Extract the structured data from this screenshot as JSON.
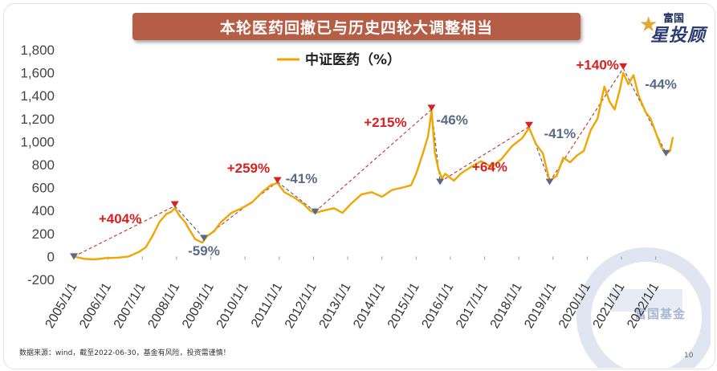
{
  "title": "本轮医药回撤已与历史四轮大调整相当",
  "logo": {
    "line1": "富国",
    "line2": "星投顾"
  },
  "watermark_text": "富国基金",
  "footer_note": "数据来源：wind，截至2022-06-30，基金有风险，投资需谨慎！",
  "page_number": "10",
  "colors": {
    "series": "#f0a500",
    "rise": "#d92020",
    "fall": "#5a6a86",
    "title_bg": "#b55e45"
  },
  "chart_data": {
    "type": "line",
    "title": "",
    "xlabel": "",
    "ylabel": "",
    "ylim": [
      -200,
      1800
    ],
    "yticks": [
      -200,
      0,
      200,
      400,
      600,
      800,
      1000,
      1200,
      1400,
      1600,
      1800
    ],
    "ytick_labels": [
      "-200",
      "0",
      "200",
      "400",
      "600",
      "800",
      "1,000",
      "1,200",
      "1,400",
      "1,600",
      "1,800"
    ],
    "x_range": [
      2005.0,
      2022.5
    ],
    "xtick_labels": [
      "2005/1/1",
      "2006/1/1",
      "2007/1/1",
      "2008/1/1",
      "2009/1/1",
      "2010/1/1",
      "2011/1/1",
      "2012/1/1",
      "2013/1/1",
      "2014/1/1",
      "2015/1/1",
      "2016/1/1",
      "2017/1/1",
      "2018/1/1",
      "2019/1/1",
      "2020/1/1",
      "2021/1/1",
      "2022/1/1"
    ],
    "legend": {
      "position": "top-left",
      "entries": [
        "中证医药（%）"
      ]
    },
    "grid": false,
    "series": [
      {
        "name": "中证医药（%）",
        "points": [
          [
            2005.0,
            0
          ],
          [
            2005.3,
            -20
          ],
          [
            2005.6,
            -25
          ],
          [
            2005.9,
            -15
          ],
          [
            2006.3,
            -10
          ],
          [
            2006.6,
            0
          ],
          [
            2006.9,
            40
          ],
          [
            2007.1,
            80
          ],
          [
            2007.3,
            180
          ],
          [
            2007.5,
            300
          ],
          [
            2007.7,
            370
          ],
          [
            2007.85,
            390
          ],
          [
            2007.95,
            420
          ],
          [
            2008.1,
            350
          ],
          [
            2008.25,
            300
          ],
          [
            2008.4,
            220
          ],
          [
            2008.55,
            150
          ],
          [
            2008.75,
            120
          ],
          [
            2008.9,
            180
          ],
          [
            2009.1,
            220
          ],
          [
            2009.3,
            300
          ],
          [
            2009.6,
            380
          ],
          [
            2009.9,
            420
          ],
          [
            2010.2,
            470
          ],
          [
            2010.5,
            560
          ],
          [
            2010.75,
            620
          ],
          [
            2010.95,
            640
          ],
          [
            2011.15,
            560
          ],
          [
            2011.4,
            520
          ],
          [
            2011.7,
            460
          ],
          [
            2011.9,
            400
          ],
          [
            2012.05,
            380
          ],
          [
            2012.3,
            400
          ],
          [
            2012.6,
            420
          ],
          [
            2012.85,
            380
          ],
          [
            2013.1,
            460
          ],
          [
            2013.4,
            540
          ],
          [
            2013.7,
            560
          ],
          [
            2014.0,
            520
          ],
          [
            2014.3,
            580
          ],
          [
            2014.6,
            600
          ],
          [
            2014.85,
            620
          ],
          [
            2015.0,
            720
          ],
          [
            2015.2,
            900
          ],
          [
            2015.35,
            1050
          ],
          [
            2015.45,
            1270
          ],
          [
            2015.55,
            900
          ],
          [
            2015.65,
            760
          ],
          [
            2015.75,
            680
          ],
          [
            2015.85,
            720
          ],
          [
            2016.1,
            660
          ],
          [
            2016.3,
            720
          ],
          [
            2016.6,
            780
          ],
          [
            2016.9,
            830
          ],
          [
            2017.2,
            780
          ],
          [
            2017.5,
            850
          ],
          [
            2017.8,
            960
          ],
          [
            2018.1,
            1030
          ],
          [
            2018.3,
            1120
          ],
          [
            2018.5,
            980
          ],
          [
            2018.7,
            900
          ],
          [
            2018.9,
            660
          ],
          [
            2019.1,
            700
          ],
          [
            2019.3,
            860
          ],
          [
            2019.5,
            820
          ],
          [
            2019.7,
            880
          ],
          [
            2019.9,
            920
          ],
          [
            2020.1,
            1100
          ],
          [
            2020.3,
            1200
          ],
          [
            2020.5,
            1480
          ],
          [
            2020.65,
            1350
          ],
          [
            2020.8,
            1280
          ],
          [
            2020.95,
            1450
          ],
          [
            2021.05,
            1600
          ],
          [
            2021.2,
            1500
          ],
          [
            2021.35,
            1580
          ],
          [
            2021.5,
            1400
          ],
          [
            2021.7,
            1260
          ],
          [
            2021.85,
            1200
          ],
          [
            2022.0,
            1080
          ],
          [
            2022.15,
            960
          ],
          [
            2022.3,
            890
          ],
          [
            2022.42,
            920
          ],
          [
            2022.5,
            1040
          ]
        ]
      }
    ],
    "peak_trough_markers": [
      {
        "x": 2005.0,
        "y": 0,
        "kind": "trough"
      },
      {
        "x": 2007.95,
        "y": 440,
        "kind": "peak"
      },
      {
        "x": 2008.8,
        "y": 160,
        "kind": "trough"
      },
      {
        "x": 2010.95,
        "y": 650,
        "kind": "peak"
      },
      {
        "x": 2012.05,
        "y": 390,
        "kind": "trough"
      },
      {
        "x": 2015.45,
        "y": 1280,
        "kind": "peak"
      },
      {
        "x": 2015.7,
        "y": 650,
        "kind": "trough"
      },
      {
        "x": 2018.3,
        "y": 1130,
        "kind": "peak"
      },
      {
        "x": 2018.9,
        "y": 650,
        "kind": "trough"
      },
      {
        "x": 2021.05,
        "y": 1640,
        "kind": "peak"
      },
      {
        "x": 2022.3,
        "y": 900,
        "kind": "trough"
      }
    ],
    "annotations": [
      {
        "text": "+404%",
        "kind": "rise",
        "x": 2006.35,
        "y": 290
      },
      {
        "text": "-59%",
        "kind": "fall",
        "x": 2008.8,
        "y": 10
      },
      {
        "text": "+259%",
        "kind": "rise",
        "x": 2010.1,
        "y": 730
      },
      {
        "text": "-41%",
        "kind": "fall",
        "x": 2011.65,
        "y": 640
      },
      {
        "text": "+215%",
        "kind": "rise",
        "x": 2014.1,
        "y": 1130
      },
      {
        "text": "-46%",
        "kind": "fall",
        "x": 2016.05,
        "y": 1150
      },
      {
        "text": "+64%",
        "kind": "rise",
        "x": 2017.15,
        "y": 740
      },
      {
        "text": "-41%",
        "kind": "fall",
        "x": 2019.2,
        "y": 1030
      },
      {
        "text": "+140%",
        "kind": "rise",
        "x": 2020.3,
        "y": 1630
      },
      {
        "text": "-44%",
        "kind": "fall",
        "x": 2022.15,
        "y": 1460
      }
    ]
  }
}
